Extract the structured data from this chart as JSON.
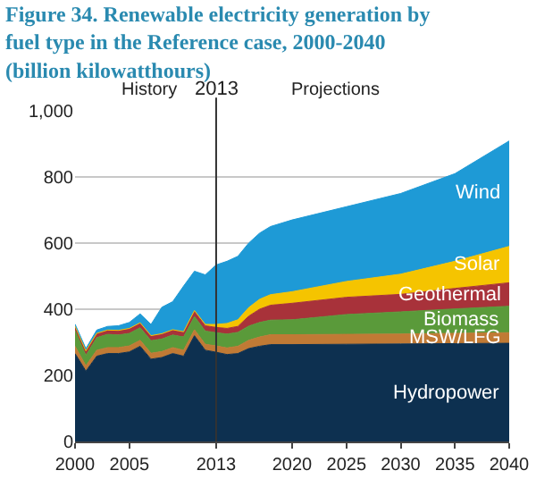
{
  "chart_data": {
    "type": "area",
    "stacked": true,
    "title": "Figure 34. Renewable electricity generation by fuel type in the Reference case, 2000-2040 (billion kilowatthours)",
    "x": [
      2000,
      2001,
      2002,
      2003,
      2004,
      2005,
      2006,
      2007,
      2008,
      2009,
      2010,
      2011,
      2012,
      2013,
      2014,
      2015,
      2016,
      2017,
      2018,
      2020,
      2025,
      2030,
      2035,
      2040
    ],
    "series": [
      {
        "name": "Hydropower",
        "color": "#0d3050",
        "values": [
          266,
          213,
          258,
          266,
          266,
          271,
          288,
          249,
          254,
          266,
          258,
          320,
          276,
          270,
          263,
          266,
          281,
          288,
          293,
          293,
          294,
          295,
          296,
          297
        ]
      },
      {
        "name": "MSW/LFG",
        "color": "#c07a35",
        "values": [
          22,
          16,
          18,
          18,
          18,
          18,
          18,
          18,
          18,
          18,
          18,
          18,
          18,
          19,
          20,
          22,
          25,
          28,
          30,
          30,
          30,
          30,
          31,
          32
        ]
      },
      {
        "name": "Biomass",
        "color": "#5a9a3a",
        "values": [
          47,
          32,
          38,
          40,
          38,
          38,
          38,
          38,
          38,
          38,
          40,
          40,
          40,
          40,
          42,
          42,
          43,
          44,
          44,
          45,
          60,
          67,
          74,
          80
        ]
      },
      {
        "name": "Geothermal",
        "color": "#a8323a",
        "values": [
          14,
          13,
          13,
          13,
          14,
          15,
          15,
          15,
          15,
          15,
          15,
          16,
          16,
          16,
          17,
          18,
          30,
          40,
          45,
          50,
          52,
          53,
          62,
          71
        ]
      },
      {
        "name": "Solar",
        "color": "#f5c400",
        "values": [
          0,
          0,
          0,
          0,
          0,
          0,
          0,
          0,
          1,
          1,
          1,
          2,
          4,
          9,
          15,
          20,
          26,
          30,
          32,
          35,
          48,
          61,
          82,
          110
        ]
      },
      {
        "name": "Wind",
        "color": "#1e9ad6",
        "values": [
          6,
          7,
          10,
          11,
          14,
          18,
          27,
          34,
          80,
          85,
          138,
          119,
          150,
          180,
          188,
          192,
          195,
          200,
          206,
          217,
          226,
          244,
          265,
          319
        ]
      }
    ],
    "xlim": [
      2000,
      2040
    ],
    "xticks": [
      2000,
      2005,
      2013,
      2020,
      2025,
      2030,
      2035,
      2040
    ],
    "ylim": [
      0,
      1000
    ],
    "yticks": [
      0,
      200,
      400,
      600,
      800,
      {
        "value": 1000,
        "label": "1,000"
      }
    ],
    "grid": "y",
    "legend": false,
    "ref_lines": [
      {
        "axis": "x",
        "value": 2013,
        "label": "2013",
        "color": "#333333"
      }
    ],
    "annotations": [
      "History",
      "Projections"
    ]
  }
}
